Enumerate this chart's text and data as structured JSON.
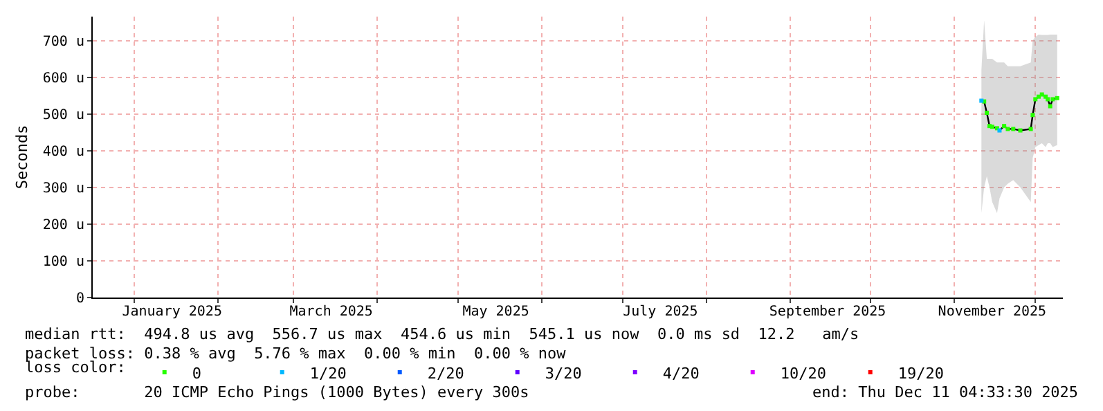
{
  "chart_data": {
    "type": "line",
    "ylabel": "Seconds",
    "x": [
      "2025-11-11",
      "2025-11-12",
      "2025-11-13",
      "2025-11-14",
      "2025-11-15",
      "2025-11-16T19:00",
      "2025-11-17T17:00",
      "2025-11-19T10:00",
      "2025-11-20T19:00",
      "2025-11-22T19:00",
      "2025-11-25T10:00",
      "2025-11-29T07:00",
      "2025-11-30",
      "2025-12-01",
      "2025-12-02T05:00",
      "2025-12-03T10:00",
      "2025-12-04T19:00",
      "2025-12-05T14:00",
      "2025-12-06T12:00",
      "2025-12-07T10:00",
      "2025-12-09T02:00"
    ],
    "series": [
      {
        "type": "line",
        "marker": "none",
        "color": "#000000",
        "values": [
          536,
          534,
          503,
          467,
          465,
          461,
          455,
          467,
          459,
          459,
          455,
          459,
          497,
          540,
          547,
          553,
          547,
          540,
          521,
          540,
          543
        ],
        "lower": [
          230,
          300,
          330,
          300,
          260,
          230,
          270,
          300,
          310,
          320,
          300,
          260,
          380,
          410,
          415,
          420,
          410,
          420,
          420,
          410,
          415
        ],
        "upper": [
          620,
          755,
          650,
          650,
          650,
          640,
          640,
          640,
          630,
          630,
          630,
          640,
          700,
          710,
          716,
          715,
          715,
          715,
          716,
          716,
          716
        ]
      },
      {
        "type": "scatter",
        "name": "0",
        "color": "#26ff00",
        "values": [
          null,
          534,
          503,
          467,
          465,
          461,
          null,
          467,
          459,
          459,
          455,
          459,
          497,
          540,
          547,
          553,
          547,
          540,
          521,
          540,
          543
        ]
      },
      {
        "type": "scatter",
        "name": "1/20",
        "color": "#00b8ff",
        "values": [
          536,
          null,
          null,
          null,
          null,
          null,
          455,
          null,
          null,
          null,
          null,
          null,
          null,
          null,
          null,
          null,
          null,
          null,
          null,
          null,
          null
        ]
      },
      {
        "type": "scatter",
        "name": "2/20",
        "color": "#0059ff",
        "values": [
          null,
          null,
          null,
          null,
          null,
          null,
          null,
          null,
          null,
          null,
          null,
          null,
          null,
          null,
          null,
          null,
          null,
          null,
          null,
          null,
          null
        ]
      },
      {
        "type": "scatter",
        "name": "3/20",
        "color": "#5e00ff",
        "values": [
          null,
          null,
          null,
          null,
          null,
          null,
          null,
          null,
          null,
          null,
          null,
          null,
          null,
          null,
          null,
          null,
          null,
          null,
          null,
          null,
          null
        ]
      },
      {
        "type": "scatter",
        "name": "4/20",
        "color": "#7e00ff",
        "values": [
          null,
          null,
          null,
          null,
          null,
          null,
          null,
          null,
          null,
          null,
          null,
          null,
          null,
          null,
          null,
          null,
          null,
          null,
          null,
          null,
          null
        ]
      },
      {
        "type": "scatter",
        "name": "10/20",
        "color": "#dd00ff",
        "values": [
          null,
          null,
          null,
          null,
          null,
          null,
          null,
          null,
          null,
          null,
          null,
          null,
          null,
          null,
          null,
          null,
          null,
          null,
          null,
          null,
          null
        ]
      },
      {
        "type": "scatter",
        "name": "19/20",
        "color": "#ff0000",
        "values": [
          null,
          null,
          null,
          null,
          null,
          null,
          null,
          null,
          null,
          null,
          null,
          null,
          null,
          null,
          null,
          null,
          null,
          null,
          null,
          null,
          null
        ]
      }
    ],
    "xlim": [
      "2024-12-16T14:00",
      "2025-12-11T04:33"
    ],
    "xticks": [
      {
        "value": "2025-01-01",
        "label": null
      },
      {
        "value": "2025-02-01",
        "label": null
      },
      {
        "value": "2025-03-01",
        "label": null
      },
      {
        "value": "2025-04-01",
        "label": null
      },
      {
        "value": "2025-05-01",
        "label": null
      },
      {
        "value": "2025-06-01",
        "label": null
      },
      {
        "value": "2025-07-01",
        "label": null
      },
      {
        "value": "2025-08-01",
        "label": null
      },
      {
        "value": "2025-09-01",
        "label": null
      },
      {
        "value": "2025-10-01",
        "label": null
      },
      {
        "value": "2025-11-01",
        "label": null
      },
      {
        "value": "2025-12-01",
        "label": null
      },
      {
        "value": "2025-01-15",
        "label": "January 2025"
      },
      {
        "value": "2025-03-15",
        "label": "March 2025"
      },
      {
        "value": "2025-05-15",
        "label": "May 2025"
      },
      {
        "value": "2025-07-15",
        "label": "July 2025"
      },
      {
        "value": "2025-09-15",
        "label": "September 2025"
      },
      {
        "value": "2025-11-15",
        "label": "November 2025"
      }
    ],
    "ylim": [
      0,
      765
    ],
    "yticks": [
      0,
      {
        "value": 100,
        "label": "100 u"
      },
      {
        "value": 200,
        "label": "200 u"
      },
      {
        "value": 300,
        "label": "300 u"
      },
      {
        "value": 400,
        "label": "400 u"
      },
      {
        "value": 500,
        "label": "500 u"
      },
      {
        "value": 600,
        "label": "600 u"
      },
      {
        "value": 700,
        "label": "700 u"
      }
    ],
    "grid": true,
    "legend": "bottom",
    "legend_title": "loss color:",
    "marker": "square",
    "line_style": "solid",
    "annotations": [
      "median rtt:  494.8 us avg  556.7 us max  454.6 us min  545.1 us now  0.0 ms sd  12.2   am/s",
      "packet loss: 0.38 % avg  5.76 % max  0.00 % min  0.00 % now",
      "probe:       20 ICMP Echo Pings (1000 Bytes) every 300s",
      "end: Thu Dec 11 04:33:30 2025"
    ]
  }
}
